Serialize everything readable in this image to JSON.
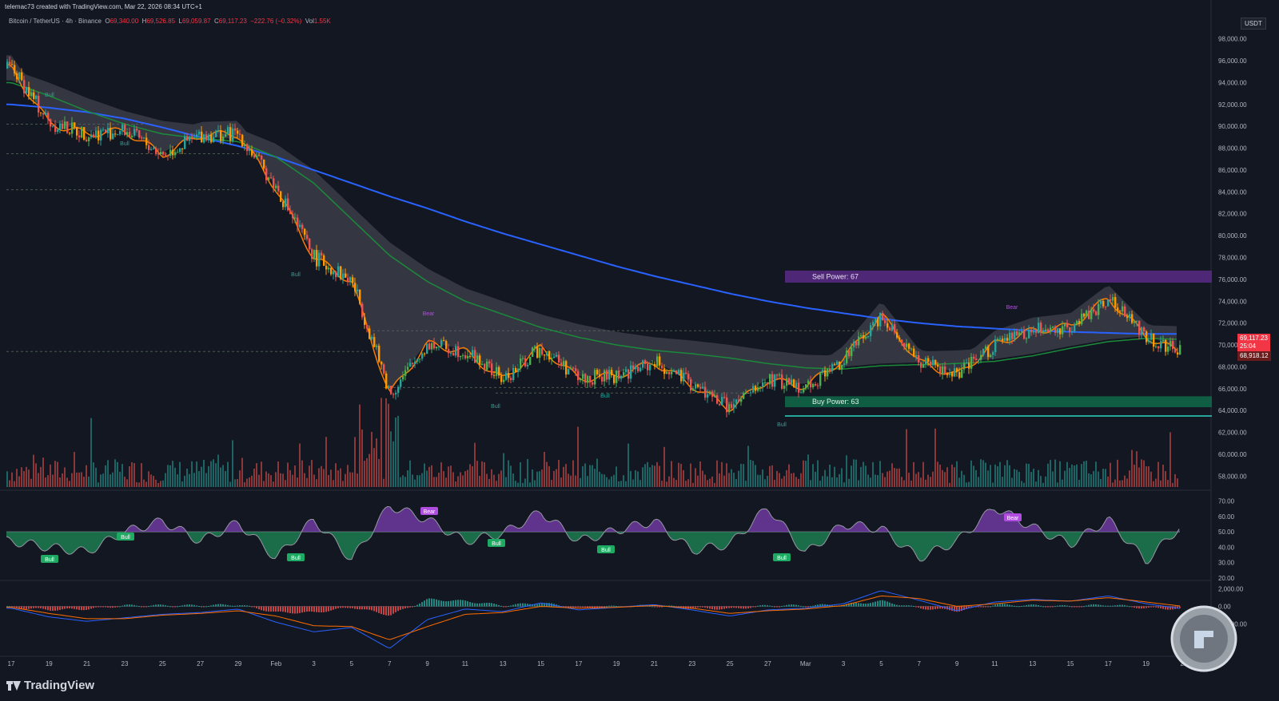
{
  "header": {
    "attribution": "telemac73 created with TradingView.com, Mar 22, 2026 08:34 UTC+1",
    "symbol": "Bitcoin / TetherUS · 4h · Binance",
    "open_label": "O",
    "open": "69,340.00",
    "high_label": "H",
    "high": "69,526.85",
    "low_label": "L",
    "low": "69,059.87",
    "close_label": "C",
    "close": "69,117.23",
    "change": "−222.76 (−0.32%)",
    "vol_label": "Vol",
    "vol": "1.55K"
  },
  "currency": "USDT",
  "price_axis": {
    "ticks": [
      "98,000.00",
      "96,000.00",
      "94,000.00",
      "92,000.00",
      "90,000.00",
      "88,000.00",
      "86,000.00",
      "84,000.00",
      "82,000.00",
      "80,000.00",
      "78,000.00",
      "76,000.00",
      "74,000.00",
      "72,000.00",
      "70,000.00",
      "68,000.00",
      "66,000.00",
      "64,000.00",
      "62,000.00",
      "60,000.00",
      "58,000.00"
    ],
    "last_price": "69,117.23",
    "countdown": "25:04",
    "other_price": "68,918.12"
  },
  "rsi_axis": {
    "ticks": [
      "70.00",
      "60.00",
      "50.00",
      "40.00",
      "30.00",
      "20.00"
    ]
  },
  "macd_axis": {
    "ticks": [
      "2,000.00",
      "0.00",
      "−2,000.00"
    ]
  },
  "time_axis": {
    "ticks": [
      "17",
      "19",
      "21",
      "23",
      "25",
      "27",
      "29",
      "Feb",
      "3",
      "5",
      "7",
      "9",
      "11",
      "13",
      "15",
      "17",
      "19",
      "21",
      "23",
      "25",
      "27",
      "Mar",
      "3",
      "5",
      "7",
      "9",
      "11",
      "13",
      "15",
      "17",
      "19",
      "21"
    ]
  },
  "zones": {
    "sell": "Sell Power: 67",
    "buy": "Buy Power: 63"
  },
  "signals": {
    "bull": "Bull",
    "bear": "Bear"
  },
  "branding": {
    "logo_text": "TradingView"
  },
  "colors": {
    "background": "#131722",
    "up": "#26a69a",
    "down": "#ef5350",
    "ma_slow": "#2962ff",
    "ma_mid": "#1b8a3a",
    "ma_fast": "#f57c00",
    "sell_zone": "#5b2a86",
    "buy_zone": "#0f6b4a",
    "price_tag": "#f23645"
  },
  "chart_data": [
    {
      "type": "candlestick",
      "title": "Bitcoin / TetherUS · 4h · Binance",
      "ylim": [
        57000,
        99000
      ],
      "x": [
        "17",
        "19",
        "21",
        "23",
        "25",
        "27",
        "29",
        "Feb",
        "3",
        "5",
        "7",
        "9",
        "11",
        "13",
        "15",
        "17",
        "19",
        "21",
        "23",
        "25",
        "27",
        "Mar",
        "3",
        "5",
        "7",
        "9",
        "11",
        "13",
        "15",
        "17",
        "19",
        "21"
      ],
      "series": [
        {
          "name": "close",
          "values": [
            95300,
            90300,
            89300,
            89600,
            87400,
            89200,
            89300,
            84300,
            78000,
            75800,
            65500,
            70100,
            69400,
            66800,
            69800,
            66900,
            67200,
            68400,
            66300,
            64200,
            66800,
            66200,
            68700,
            72800,
            68400,
            67200,
            70100,
            71300,
            71700,
            74300,
            70800,
            69117
          ]
        },
        {
          "name": "ma_slow",
          "values": [
            92000,
            91700,
            91300,
            90700,
            89900,
            89000,
            88200,
            87200,
            86000,
            84800,
            83600,
            82500,
            81300,
            80200,
            79200,
            78200,
            77200,
            76300,
            75500,
            74700,
            74000,
            73400,
            72900,
            72400,
            72000,
            71700,
            71500,
            71300,
            71200,
            71100,
            71000,
            71000
          ]
        },
        {
          "name": "ma_mid",
          "values": [
            94000,
            92800,
            91400,
            90200,
            89300,
            88900,
            88600,
            87200,
            84800,
            81500,
            78200,
            75800,
            74000,
            72800,
            71600,
            70700,
            70000,
            69500,
            69200,
            68800,
            68300,
            67900,
            67800,
            68100,
            68200,
            68300,
            68500,
            69000,
            69700,
            70300,
            70600,
            70500
          ]
        }
      ],
      "zones": [
        {
          "label": "Sell Power: 67",
          "low": 75700,
          "high": 76800
        },
        {
          "label": "Buy Power: 63",
          "low": 64300,
          "high": 65300
        }
      ]
    },
    {
      "type": "area",
      "ylim": [
        20,
        75
      ],
      "baseline": 50,
      "x": [
        "17",
        "19",
        "21",
        "23",
        "25",
        "27",
        "29",
        "Feb",
        "3",
        "5",
        "7",
        "9",
        "11",
        "13",
        "15",
        "17",
        "19",
        "21",
        "23",
        "25",
        "27",
        "Mar",
        "3",
        "5",
        "7",
        "9",
        "11",
        "13",
        "15",
        "17",
        "19",
        "21"
      ],
      "values": [
        44,
        40,
        37,
        50,
        57,
        44,
        56,
        33,
        58,
        32,
        67,
        58,
        44,
        49,
        63,
        44,
        51,
        57,
        38,
        42,
        66,
        36,
        55,
        52,
        33,
        44,
        66,
        53,
        42,
        58,
        31,
        56
      ]
    },
    {
      "type": "line",
      "ylim": [
        -5500,
        2500
      ],
      "baseline": 0,
      "x": [
        "17",
        "19",
        "21",
        "23",
        "25",
        "27",
        "29",
        "Feb",
        "3",
        "5",
        "7",
        "9",
        "11",
        "13",
        "15",
        "17",
        "19",
        "21",
        "23",
        "25",
        "27",
        "Mar",
        "3",
        "5",
        "7",
        "9",
        "11",
        "13",
        "15",
        "17",
        "19",
        "21"
      ],
      "series": [
        {
          "name": "macd",
          "values": [
            -200,
            -1200,
            -1700,
            -1300,
            -900,
            -700,
            -300,
            -1800,
            -2900,
            -2400,
            -4800,
            -1500,
            -300,
            -600,
            400,
            -400,
            -100,
            200,
            -400,
            -1100,
            -400,
            -200,
            300,
            1800,
            700,
            -500,
            500,
            800,
            600,
            1200,
            300,
            -300
          ]
        },
        {
          "name": "signal",
          "values": [
            -100,
            -800,
            -1400,
            -1400,
            -1000,
            -800,
            -500,
            -1100,
            -2200,
            -2300,
            -3800,
            -2300,
            -900,
            -700,
            0,
            -200,
            -100,
            100,
            -200,
            -800,
            -500,
            -300,
            100,
            1200,
            900,
            0,
            300,
            700,
            600,
            1000,
            500,
            0
          ]
        }
      ]
    }
  ]
}
